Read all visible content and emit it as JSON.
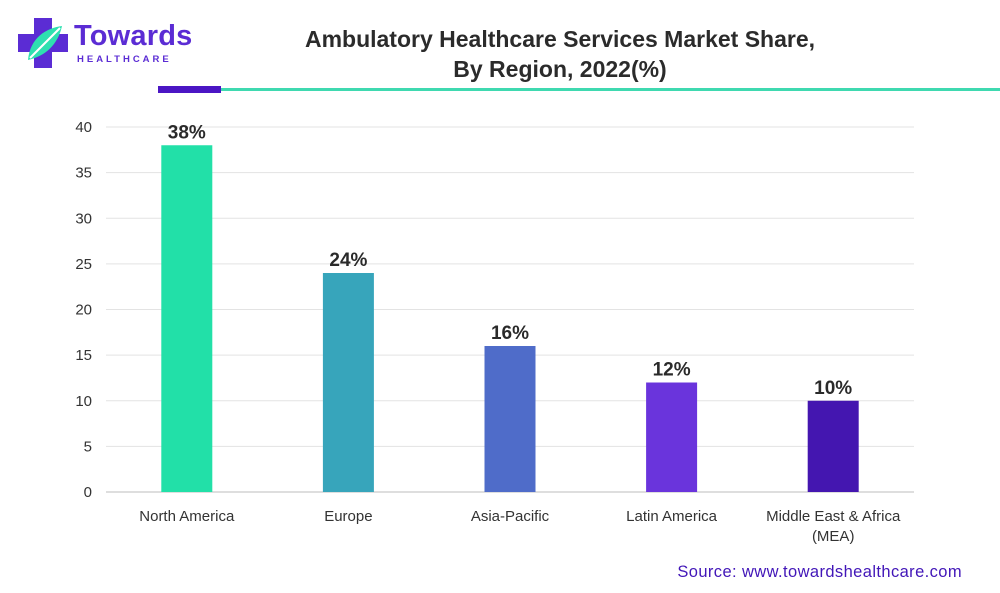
{
  "brand": {
    "name": "Towards",
    "sub": "HEALTHCARE",
    "colors": {
      "primary": "#5b2cd4",
      "leaf": "#2ee0b0"
    }
  },
  "header": {
    "title_line1": "Ambulatory Healthcare Services Market Share,",
    "title_line2": "By Region, 2022(%)"
  },
  "chart_data": {
    "type": "bar",
    "title": "Ambulatory Healthcare Services Market Share, By Region, 2022(%)",
    "xlabel": "",
    "ylabel": "",
    "categories": [
      "North America",
      "Europe",
      "Asia-Pacific",
      "Latin America",
      "Middle East & Africa (MEA)"
    ],
    "category_label_lines": [
      [
        "North America"
      ],
      [
        "Europe"
      ],
      [
        "Asia-Pacific"
      ],
      [
        "Latin America"
      ],
      [
        "Middle East & Africa",
        "(MEA)"
      ]
    ],
    "values": [
      38,
      24,
      16,
      12,
      10
    ],
    "data_labels": [
      "38%",
      "24%",
      "16%",
      "12%",
      "10%"
    ],
    "colors": [
      "#22e0a8",
      "#37a5bb",
      "#4f6cc9",
      "#6a34dc",
      "#4416b0"
    ],
    "ylim": [
      0,
      40
    ],
    "yticks": [
      0,
      5,
      10,
      15,
      20,
      25,
      30,
      35,
      40
    ],
    "grid": true,
    "legend": "none"
  },
  "footer": {
    "source": "Source: www.towardshealthcare.com"
  }
}
